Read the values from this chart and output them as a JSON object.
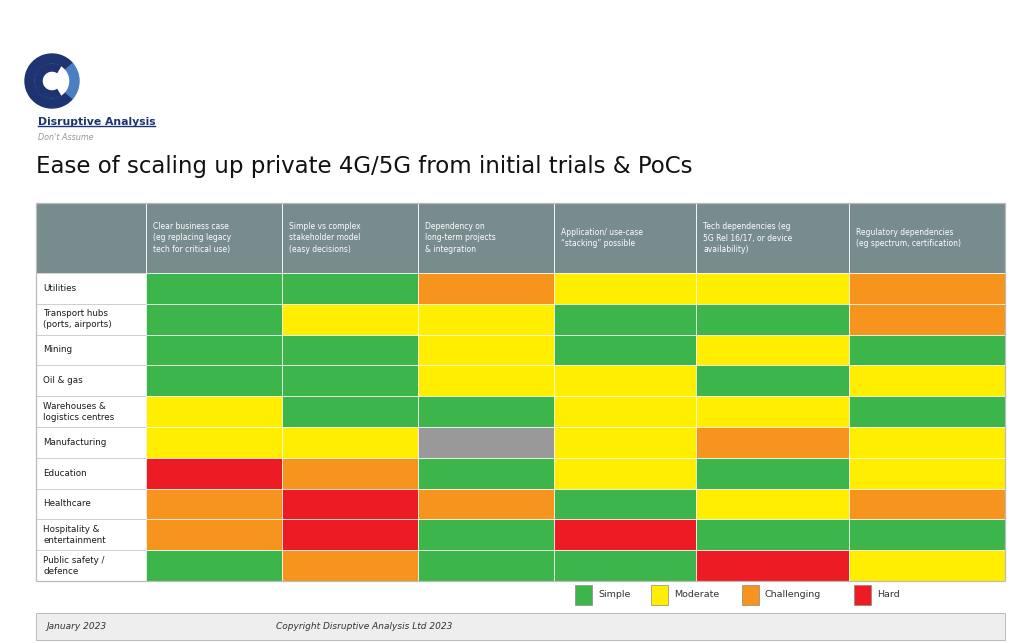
{
  "title": "Ease of scaling up private 4G/5G from initial trials & PoCs",
  "footer_left": "January 2023",
  "footer_right": "Copyright Disruptive Analysis Ltd 2023",
  "col_headers": [
    "Clear business case\n(eg replacing legacy\ntech for critical use)",
    "Simple vs complex\nstakeholder model\n(easy decisions)",
    "Dependency on\nlong-term projects\n& integration",
    "Application/ use-case\n“stacking” possible",
    "Tech dependencies (eg\n5G Rel 16/17, or device\navailability)",
    "Regulatory dependencies\n(eg spectrum, certification)"
  ],
  "row_labels": [
    "Utilities",
    "Transport hubs\n(ports, airports)",
    "Mining",
    "Oil & gas",
    "Warehouses &\nlogistics centres",
    "Manufacturing",
    "Education",
    "Healthcare",
    "Hospitality &\nentertainment",
    "Public safety /\ndefence"
  ],
  "colors": {
    "G": "#3cb54a",
    "Y": "#ffee00",
    "O": "#f7941d",
    "R": "#ed1c24",
    "S": "#999999"
  },
  "cell_data": [
    [
      "G",
      "G",
      "O",
      "Y",
      "Y",
      "O"
    ],
    [
      "G",
      "Y",
      "Y",
      "G",
      "G",
      "O"
    ],
    [
      "G",
      "G",
      "Y",
      "G",
      "Y",
      "G"
    ],
    [
      "G",
      "G",
      "Y",
      "Y",
      "G",
      "Y"
    ],
    [
      "Y",
      "G",
      "G",
      "Y",
      "Y",
      "G"
    ],
    [
      "Y",
      "Y",
      "S",
      "Y",
      "O",
      "Y"
    ],
    [
      "R",
      "O",
      "G",
      "Y",
      "G",
      "Y"
    ],
    [
      "O",
      "R",
      "O",
      "G",
      "Y",
      "O"
    ],
    [
      "O",
      "R",
      "G",
      "R",
      "G",
      "G"
    ],
    [
      "G",
      "O",
      "G",
      "G",
      "R",
      "Y"
    ]
  ],
  "legend": [
    {
      "label": "Simple",
      "color": "#3cb54a"
    },
    {
      "label": "Moderate",
      "color": "#ffee00"
    },
    {
      "label": "Challenging",
      "color": "#f7941d"
    },
    {
      "label": "Hard",
      "color": "#ed1c24"
    }
  ],
  "header_bg": "#788b8d",
  "page_bg": "#ffffff",
  "footer_bg": "#eeeeee",
  "border_color": "#bbbbbb"
}
